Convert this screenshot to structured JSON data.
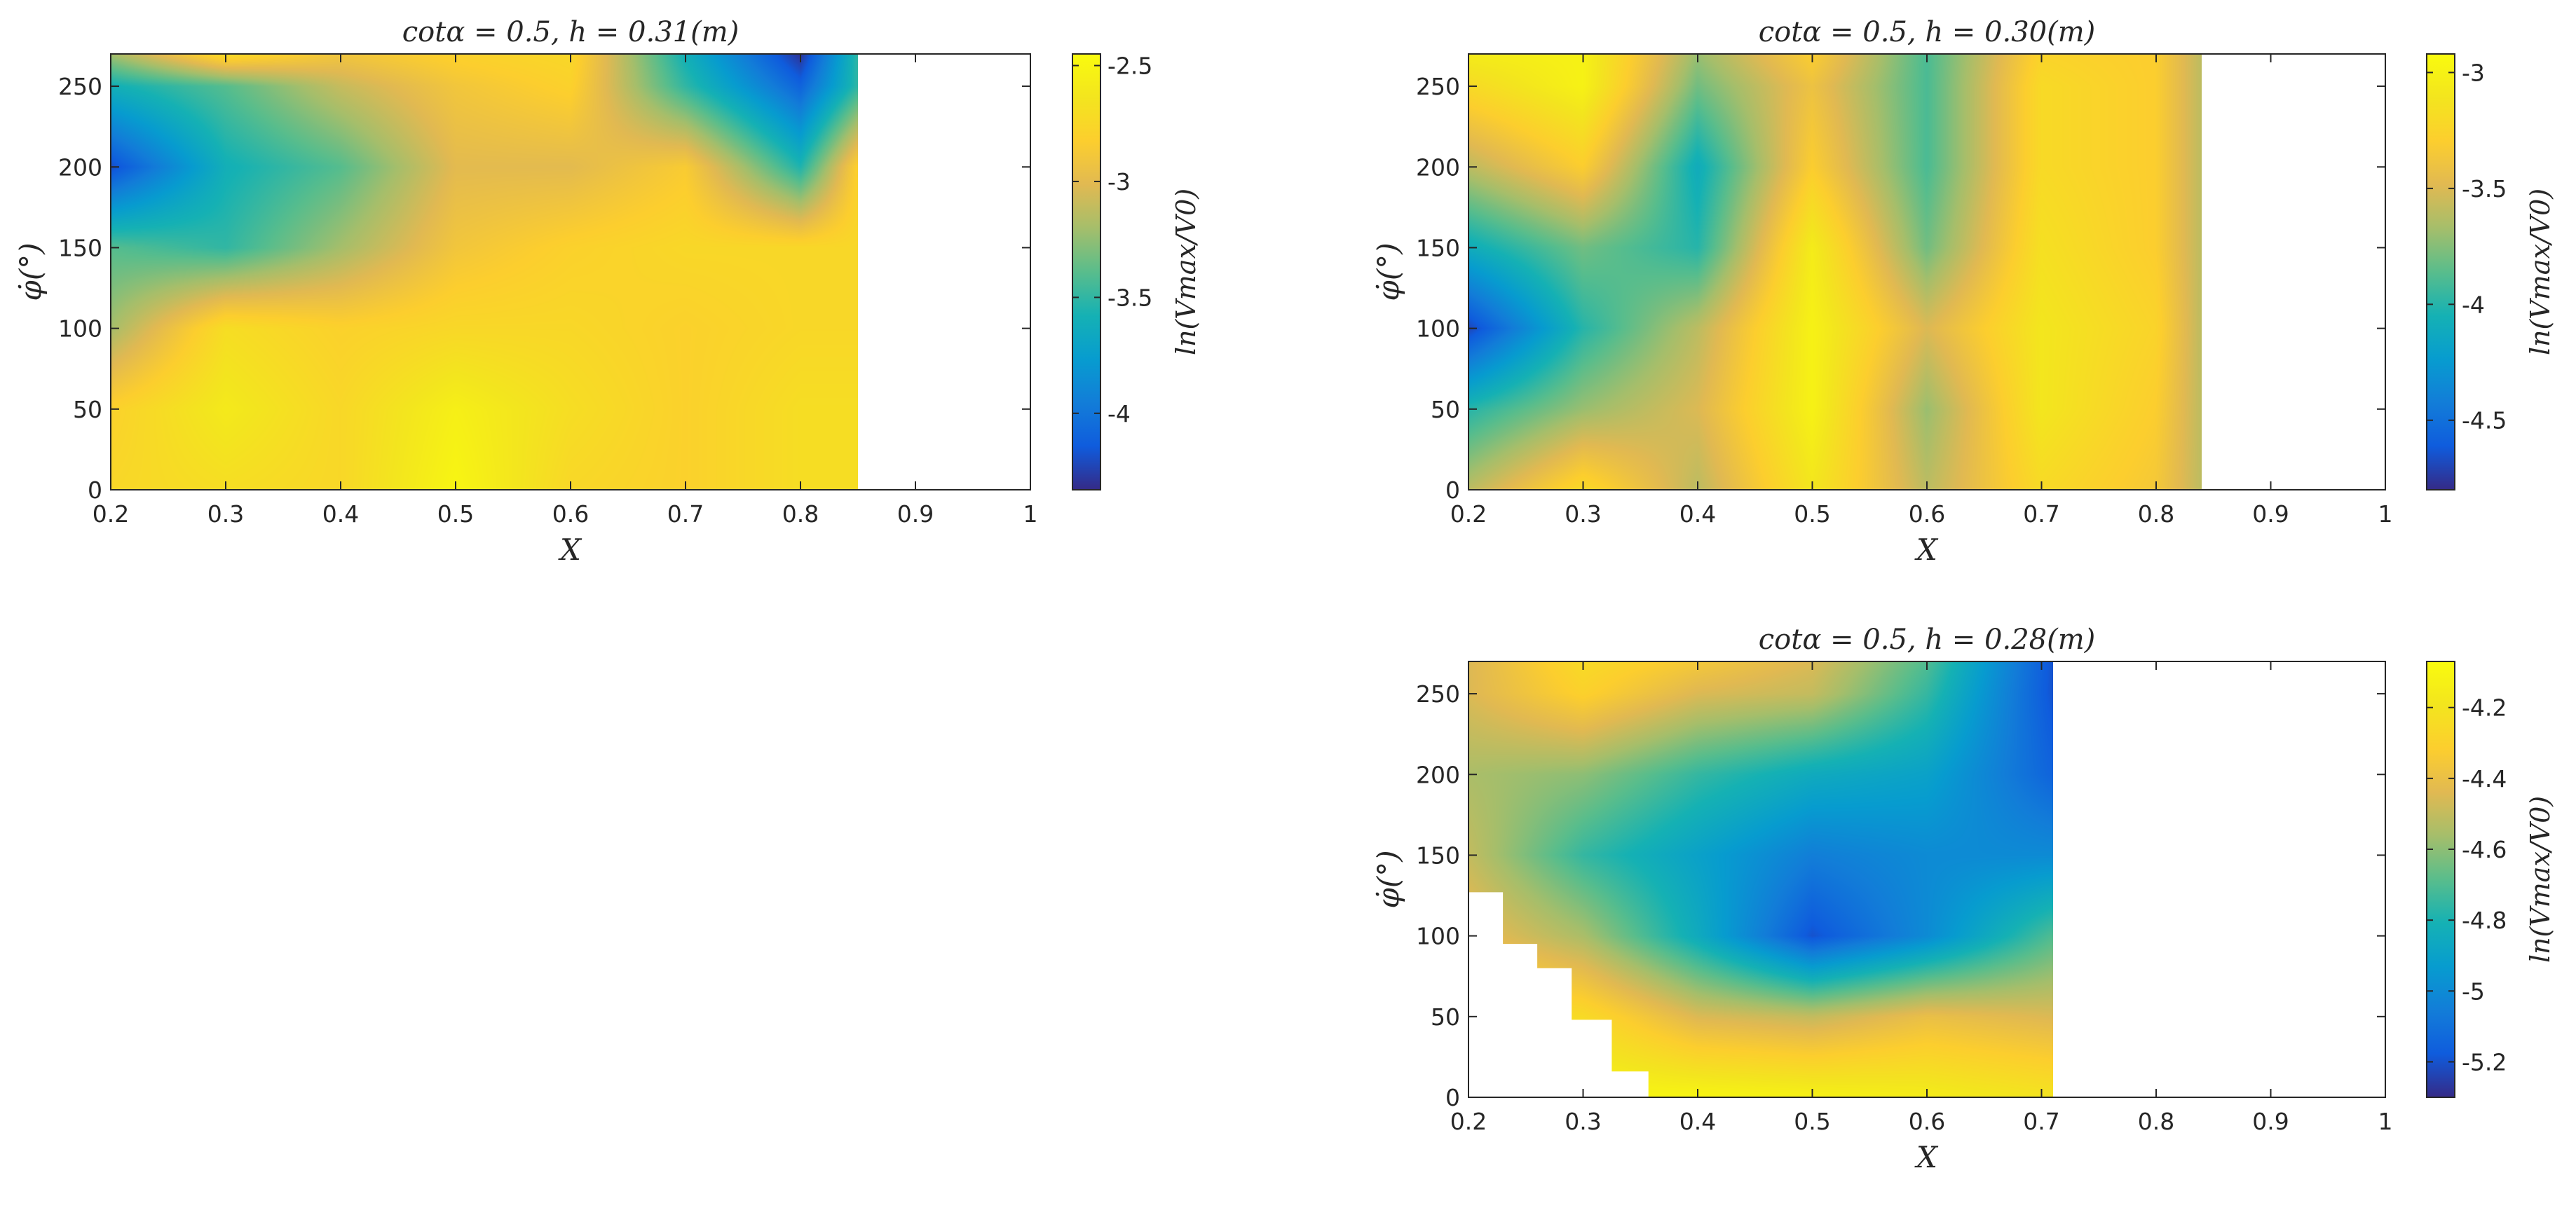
{
  "chart_data": [
    {
      "type": "heatmap",
      "title": "cotα = 0.5, h = 0.31(m)",
      "xlabel": "X",
      "ylabel": "φ̇(°)",
      "colorbar_label": "ln(Vmax/V0)",
      "xlim": [
        0.2,
        1
      ],
      "ylim": [
        0,
        270
      ],
      "x_ticks": [
        "0.2",
        "0.3",
        "0.4",
        "0.5",
        "0.6",
        "0.7",
        "0.8",
        "0.9",
        "1"
      ],
      "y_ticks": [
        "0",
        "50",
        "100",
        "150",
        "200",
        "250"
      ],
      "clim": [
        -4.33,
        -2.45
      ],
      "colorbar_ticks": [
        "-4",
        "-3.5",
        "-3",
        "-2.5"
      ],
      "colorbar_tick_values": [
        -4,
        -3.5,
        -3,
        -2.5
      ],
      "colormap": "parula",
      "data_x_range": [
        0.2,
        0.85
      ],
      "x": [
        0.2,
        0.3,
        0.4,
        0.5,
        0.6,
        0.7,
        0.8,
        0.85
      ],
      "y": [
        0,
        50,
        100,
        150,
        200,
        250,
        270
      ],
      "z": [
        [
          -2.75,
          -2.7,
          -2.75,
          -2.5,
          -2.75,
          -2.8,
          -2.7,
          -2.7
        ],
        [
          -2.8,
          -2.6,
          -2.75,
          -2.55,
          -2.7,
          -2.8,
          -2.7,
          -2.7
        ],
        [
          -3.2,
          -2.7,
          -2.8,
          -2.75,
          -2.75,
          -2.8,
          -2.75,
          -2.75
        ],
        [
          -3.4,
          -3.5,
          -3.2,
          -2.9,
          -2.8,
          -2.75,
          -2.75,
          -2.75
        ],
        [
          -4.2,
          -3.6,
          -3.4,
          -3.0,
          -3.0,
          -2.85,
          -3.55,
          -2.8
        ],
        [
          -3.6,
          -3.4,
          -3.1,
          -2.9,
          -2.8,
          -3.5,
          -4.1,
          -3.5
        ],
        [
          -3.2,
          -2.7,
          -2.9,
          -2.8,
          -2.75,
          -3.6,
          -4.3,
          -3.5
        ]
      ]
    },
    {
      "type": "heatmap",
      "title": "cotα = 0.5, h = 0.30(m)",
      "xlabel": "X",
      "ylabel": "φ̇(°)",
      "colorbar_label": "ln(Vmax/V0)",
      "xlim": [
        0.2,
        1
      ],
      "ylim": [
        0,
        270
      ],
      "x_ticks": [
        "0.2",
        "0.3",
        "0.4",
        "0.5",
        "0.6",
        "0.7",
        "0.8",
        "0.9",
        "1"
      ],
      "y_ticks": [
        "0",
        "50",
        "100",
        "150",
        "200",
        "250"
      ],
      "clim": [
        -4.8,
        -2.92
      ],
      "colorbar_ticks": [
        "-4.5",
        "-4",
        "-3.5",
        "-3"
      ],
      "colorbar_tick_values": [
        -4.5,
        -4,
        -3.5,
        -3
      ],
      "colormap": "parula",
      "data_x_range": [
        0.2,
        0.84
      ],
      "x": [
        0.2,
        0.3,
        0.4,
        0.5,
        0.6,
        0.7,
        0.8,
        0.84
      ],
      "y": [
        0,
        50,
        100,
        150,
        200,
        250,
        270
      ],
      "z": [
        [
          -3.6,
          -3.2,
          -3.6,
          -3.1,
          -3.6,
          -3.2,
          -3.35,
          -3.6
        ],
        [
          -4.0,
          -3.7,
          -3.5,
          -3.0,
          -3.7,
          -3.1,
          -3.3,
          -3.6
        ],
        [
          -4.7,
          -4.0,
          -3.6,
          -3.0,
          -3.5,
          -3.1,
          -3.25,
          -3.6
        ],
        [
          -4.1,
          -3.8,
          -4.0,
          -3.05,
          -3.8,
          -3.15,
          -3.3,
          -3.6
        ],
        [
          -3.6,
          -3.3,
          -4.1,
          -3.3,
          -3.9,
          -3.2,
          -3.3,
          -3.6
        ],
        [
          -3.2,
          -3.0,
          -3.8,
          -3.4,
          -3.9,
          -3.2,
          -3.3,
          -3.6
        ],
        [
          -3.05,
          -3.0,
          -3.7,
          -3.3,
          -3.9,
          -3.25,
          -3.3,
          -3.6
        ]
      ]
    },
    {
      "type": "heatmap",
      "title": "cotα = 0.5, h = 0.28(m)",
      "xlabel": "X",
      "ylabel": "φ̇(°)",
      "colorbar_label": "ln(Vmax/V0)",
      "xlim": [
        0.2,
        1
      ],
      "ylim": [
        0,
        270
      ],
      "x_ticks": [
        "0.2",
        "0.3",
        "0.4",
        "0.5",
        "0.6",
        "0.7",
        "0.8",
        "0.9",
        "1"
      ],
      "y_ticks": [
        "0",
        "50",
        "100",
        "150",
        "200",
        "250"
      ],
      "clim": [
        -5.3,
        -4.07
      ],
      "colorbar_ticks": [
        "-5.2",
        "-5",
        "-4.8",
        "-4.6",
        "-4.4",
        "-4.2"
      ],
      "colorbar_tick_values": [
        -5.2,
        -5,
        -4.8,
        -4.6,
        -4.4,
        -4.2
      ],
      "colormap": "parula",
      "data_x_range": [
        0.2,
        0.71
      ],
      "x": [
        0.2,
        0.3,
        0.4,
        0.5,
        0.6,
        0.71
      ],
      "y": [
        0,
        50,
        100,
        150,
        200,
        250,
        270
      ],
      "z": [
        [
          -4.1,
          -4.1,
          -4.1,
          -4.12,
          -4.15,
          -4.2
        ],
        [
          -4.2,
          -4.25,
          -4.45,
          -4.5,
          -4.4,
          -4.45
        ],
        [
          -4.4,
          -4.55,
          -4.85,
          -5.2,
          -5.0,
          -4.7
        ],
        [
          -4.5,
          -4.75,
          -4.9,
          -5.05,
          -5.0,
          -5.0
        ],
        [
          -4.55,
          -4.6,
          -4.75,
          -4.85,
          -4.9,
          -5.15
        ],
        [
          -4.45,
          -4.3,
          -4.45,
          -4.5,
          -4.75,
          -5.2
        ],
        [
          -4.45,
          -4.25,
          -4.35,
          -4.45,
          -4.7,
          -5.2
        ]
      ],
      "missing_region": [
        [
          0.2,
          127
        ],
        [
          0.23,
          127
        ],
        [
          0.23,
          95
        ],
        [
          0.26,
          95
        ],
        [
          0.26,
          80
        ],
        [
          0.29,
          80
        ],
        [
          0.29,
          48
        ],
        [
          0.325,
          48
        ],
        [
          0.325,
          16
        ],
        [
          0.357,
          16
        ],
        [
          0.357,
          0
        ],
        [
          0.2,
          0
        ]
      ]
    }
  ]
}
